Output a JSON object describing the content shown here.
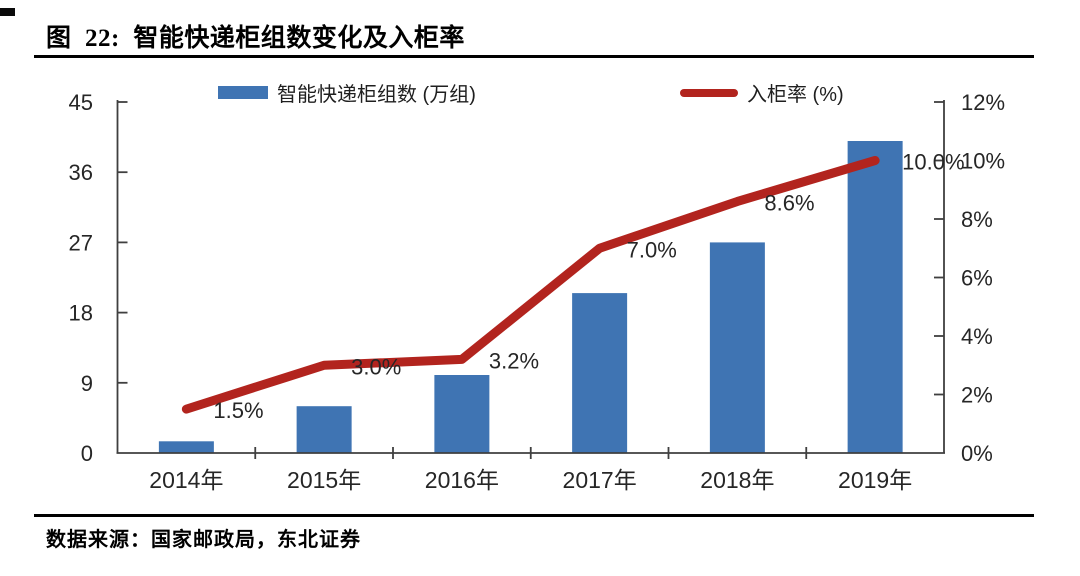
{
  "header": {
    "title": "图  22:  智能快递柜组数变化及入柜率"
  },
  "footer": {
    "source": "数据来源：国家邮政局，东北证券"
  },
  "colors": {
    "bar": "#3f74b3",
    "line": "#b2241e",
    "axis": "#3f3f3f",
    "text": "#262626",
    "rule": "#000000"
  },
  "chart_data": {
    "type": "combo",
    "title": "智能快递柜组数变化及入柜率",
    "categories": [
      "2014年",
      "2015年",
      "2016年",
      "2017年",
      "2018年",
      "2019年"
    ],
    "series": [
      {
        "name": "智能快递柜组数 (万组)",
        "type": "bar",
        "axis": "left",
        "color": "#3f74b3",
        "values": [
          1.5,
          6,
          10,
          20.5,
          27,
          40
        ]
      },
      {
        "name": "入柜率 (%)",
        "type": "line",
        "axis": "right",
        "color": "#b2241e",
        "values": [
          1.5,
          3.0,
          3.2,
          7.0,
          8.6,
          10.0
        ],
        "point_labels": [
          "1.5%",
          "3.0%",
          "3.2%",
          "7.0%",
          "8.6%",
          "10.0%"
        ]
      }
    ],
    "left_axis": {
      "min": 0,
      "max": 45,
      "ticks": [
        "0",
        "9",
        "18",
        "27",
        "36",
        "45"
      ]
    },
    "right_axis": {
      "min": 0,
      "max": 12,
      "ticks": [
        "0%",
        "2%",
        "4%",
        "6%",
        "8%",
        "10%",
        "12%"
      ]
    },
    "grid": false,
    "legend_position": "top"
  }
}
